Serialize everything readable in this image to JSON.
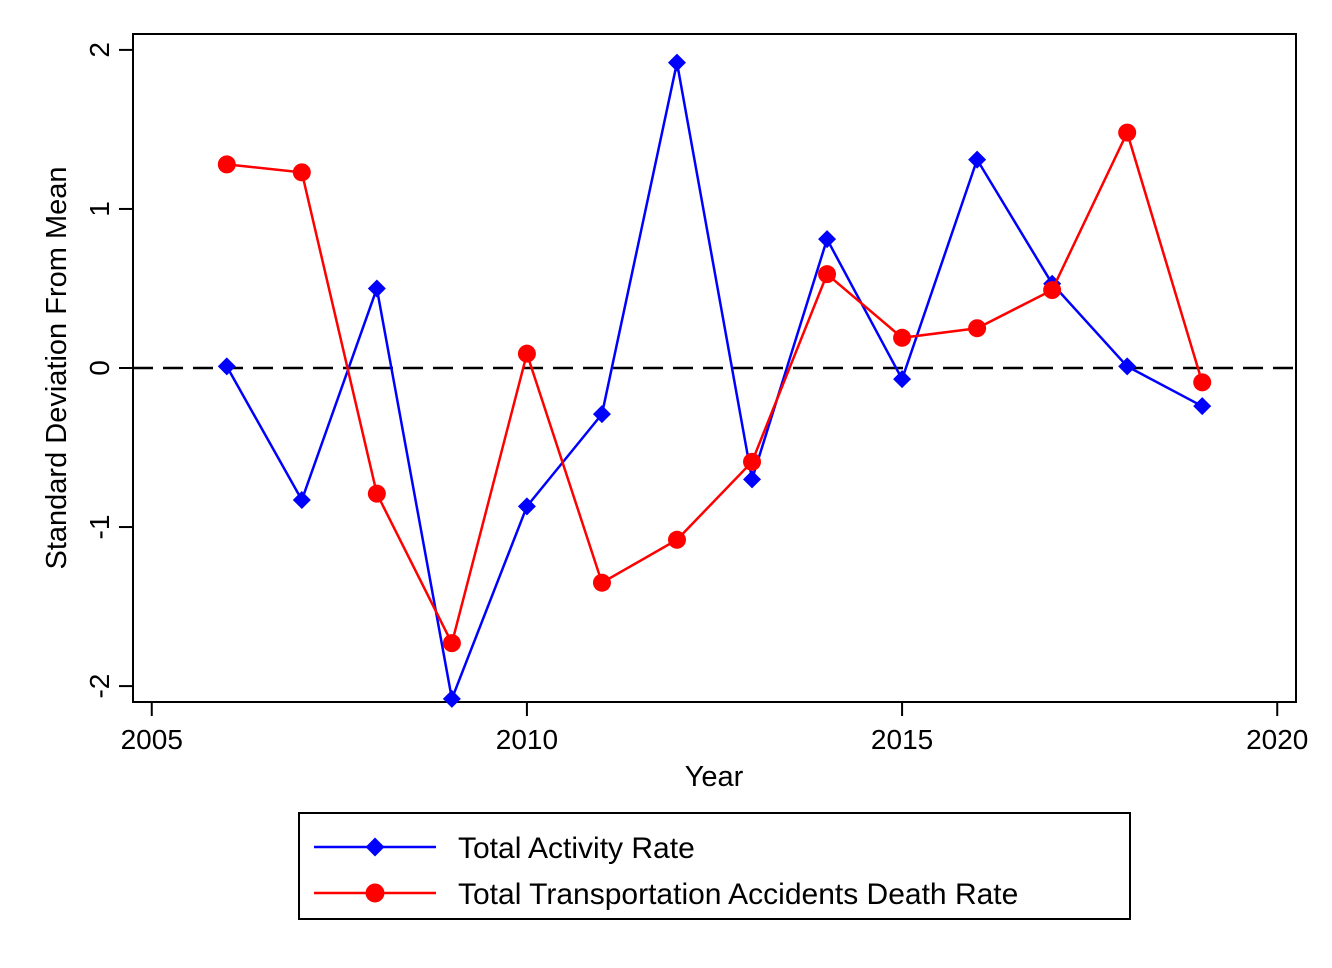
{
  "chart_data": {
    "type": "line",
    "title": "",
    "xlabel": "Year",
    "ylabel": "Standard Deviation From Mean",
    "xlim": [
      2004.75,
      2020.25
    ],
    "ylim": [
      -2.1,
      2.1
    ],
    "x_ticks": [
      2005,
      2010,
      2015,
      2020
    ],
    "x_tick_labels": [
      "2005",
      "2010",
      "2015",
      "2020"
    ],
    "y_ticks": [
      -2,
      -1,
      0,
      1,
      2
    ],
    "y_tick_labels": [
      "-2",
      "-1",
      "0",
      "1",
      "2"
    ],
    "reference_line": {
      "y": 0,
      "style": "dashed",
      "color": "#000000"
    },
    "grid": false,
    "legend_position": "bottom",
    "x": [
      2006,
      2007,
      2008,
      2009,
      2010,
      2011,
      2012,
      2013,
      2014,
      2015,
      2016,
      2017,
      2018,
      2019
    ],
    "series": [
      {
        "name": "Total Activity Rate",
        "color": "#0000ff",
        "marker": "diamond",
        "values": [
          0.01,
          -0.83,
          0.5,
          -2.08,
          -0.87,
          -0.29,
          1.92,
          -0.7,
          0.81,
          -0.07,
          1.31,
          0.53,
          0.01,
          -0.24
        ]
      },
      {
        "name": "Total Transportation Accidents Death Rate",
        "color": "#ff0000",
        "marker": "circle",
        "values": [
          1.28,
          1.23,
          -0.79,
          -1.73,
          0.09,
          -1.35,
          -1.08,
          -0.59,
          0.59,
          0.19,
          0.25,
          0.49,
          1.48,
          -0.09
        ]
      }
    ]
  }
}
